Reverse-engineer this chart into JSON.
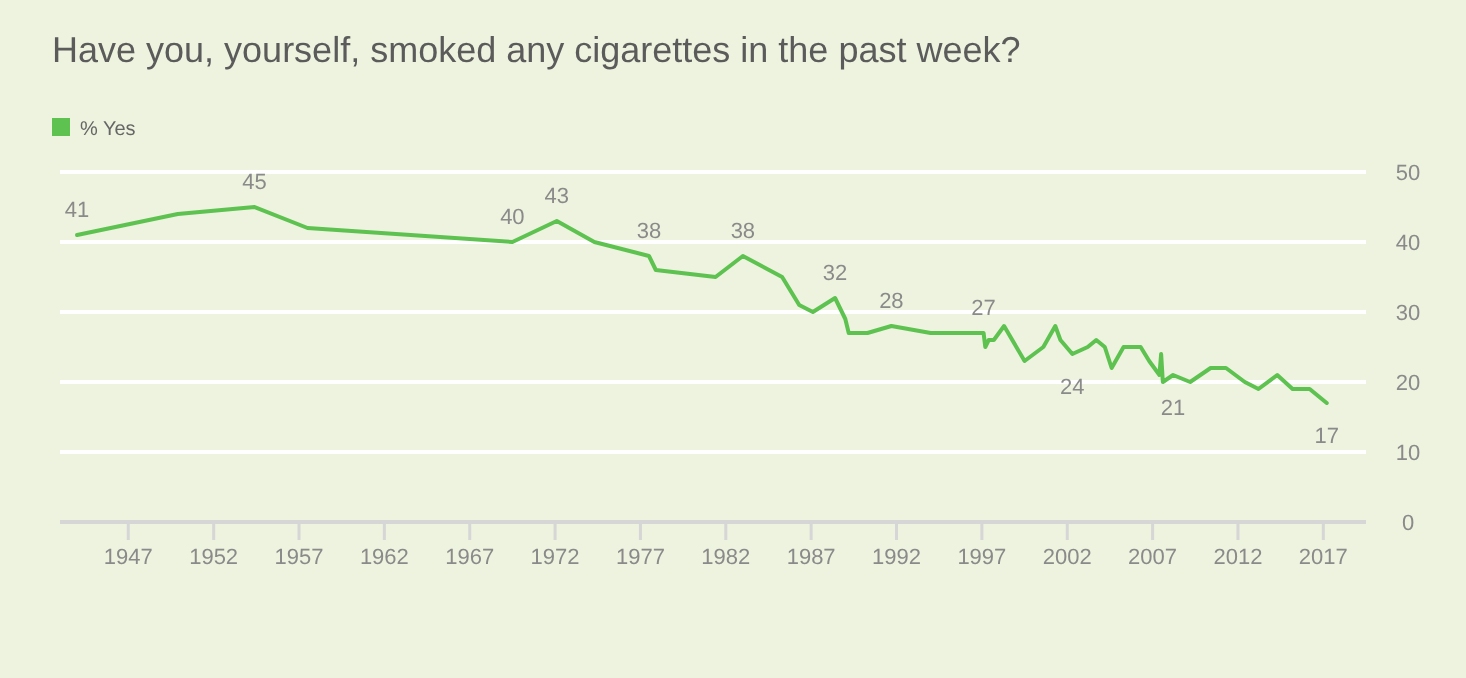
{
  "chart_data": {
    "type": "line",
    "title": "Have you, yourself, smoked any cigarettes in the past week?",
    "x": [
      1944,
      1949.9,
      1954.4,
      1957.5,
      1969.5,
      1972.1,
      1974.3,
      1977.5,
      1977.9,
      1981.4,
      1983,
      1985.3,
      1986.3,
      1987.1,
      1988.4,
      1989,
      1989.2,
      1990.3,
      1991.7,
      1994,
      1997.1,
      1997.2,
      1997.4,
      1997.7,
      1998.3,
      1999.5,
      2000.6,
      2001.3,
      2001.6,
      2002.3,
      2003.2,
      2003.7,
      2004.2,
      2004.6,
      2005.3,
      2006.3,
      2006.8,
      2007.4,
      2007.5,
      2007.6,
      2008.2,
      2009.2,
      2010.4,
      2011.3,
      2012.4,
      2013.2,
      2014.3,
      2015.2,
      2016.2,
      2017.2
    ],
    "series": [
      {
        "name": "% Yes",
        "color": "#5dc24f",
        "values": [
          41,
          44,
          45,
          42,
          40,
          43,
          40,
          38,
          36,
          35,
          38,
          35,
          31,
          30,
          32,
          29,
          27,
          27,
          28,
          27,
          27,
          25,
          26,
          26,
          28,
          23,
          25,
          28,
          26,
          24,
          25,
          26,
          25,
          22,
          25,
          25,
          23,
          21,
          24,
          20,
          21,
          20,
          22,
          22,
          20,
          19,
          21,
          19,
          19,
          17
        ],
        "value_labels": [
          "41",
          null,
          "45",
          null,
          "40",
          "43",
          null,
          "38",
          null,
          null,
          "38",
          null,
          null,
          null,
          "32",
          null,
          null,
          null,
          "28",
          null,
          "27",
          null,
          null,
          null,
          null,
          null,
          null,
          null,
          null,
          "24",
          null,
          null,
          null,
          null,
          null,
          null,
          null,
          null,
          null,
          null,
          "21",
          null,
          null,
          null,
          null,
          null,
          null,
          null,
          null,
          "17"
        ]
      }
    ],
    "xlim": [
      1943,
      2019.5
    ],
    "xticks": [
      1947,
      1952,
      1957,
      1962,
      1967,
      1972,
      1977,
      1982,
      1987,
      1992,
      1997,
      2002,
      2007,
      2012,
      2017
    ],
    "ylim": [
      0,
      50
    ],
    "yticks": [
      0,
      10,
      20,
      30,
      40,
      50
    ],
    "grid": "y",
    "legend": "top left"
  }
}
